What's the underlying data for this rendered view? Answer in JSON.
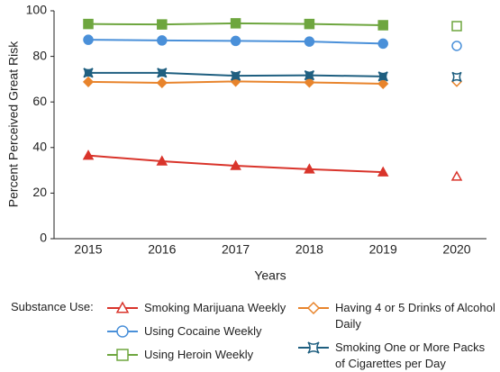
{
  "chart_data": {
    "type": "line",
    "y_label": "Percent Perceived Great Risk",
    "x_label": "Years",
    "legend_title": "Substance Use:",
    "categories": [
      "2015",
      "2016",
      "2017",
      "2018",
      "2019",
      "2020"
    ],
    "hollow_last": true,
    "ylim": [
      0,
      100
    ],
    "yticks": [
      0,
      20,
      40,
      60,
      80,
      100
    ],
    "series": [
      {
        "name": "Smoking Marijuana Weekly",
        "color": "#d9342b",
        "marker": "triangle",
        "values": [
          36.5,
          34.0,
          32.0,
          30.5,
          29.2,
          27.3
        ]
      },
      {
        "name": "Using Cocaine Weekly",
        "color": "#4a90d9",
        "marker": "circle",
        "values": [
          87.3,
          87.0,
          86.8,
          86.5,
          85.6,
          84.6
        ]
      },
      {
        "name": "Using Heroin Weekly",
        "color": "#6ea63f",
        "marker": "square",
        "values": [
          94.2,
          94.0,
          94.5,
          94.2,
          93.7,
          93.3
        ]
      },
      {
        "name": "Having 4 or 5 Drinks of Alcohol Daily",
        "color": "#e8842c",
        "marker": "diamond",
        "values": [
          68.8,
          68.4,
          69.0,
          68.6,
          68.0,
          68.9
        ]
      },
      {
        "name": "Smoking One or More Packs of Cigarettes per Day",
        "color": "#1f5f80",
        "marker": "bowtie",
        "values": [
          72.8,
          72.8,
          71.5,
          71.7,
          71.2,
          71.0
        ]
      }
    ]
  }
}
